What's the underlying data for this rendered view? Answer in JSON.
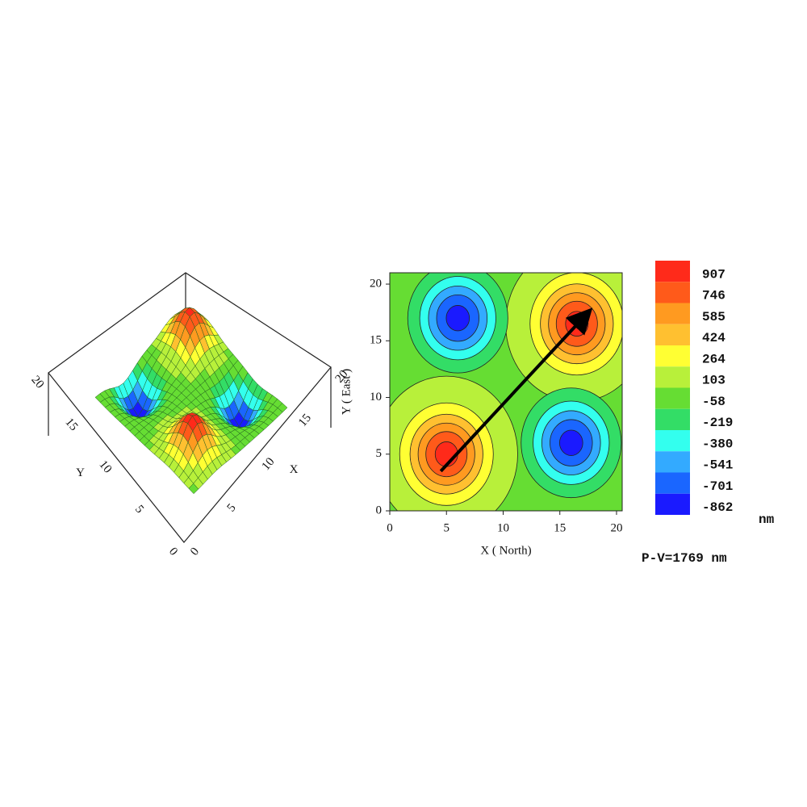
{
  "chart_data": [
    {
      "type": "surface",
      "xlabel": "X",
      "ylabel": "Y",
      "xlim": [
        0,
        20
      ],
      "ylim": [
        0,
        20
      ],
      "xticks": [
        0,
        5,
        10,
        15,
        20
      ],
      "yticks": [
        0,
        5,
        10,
        15,
        20
      ],
      "extrema": {
        "x": [
          5,
          16.5,
          6,
          16
        ],
        "y": [
          5,
          16.5,
          17,
          6
        ],
        "values": [
          907,
          907,
          -862,
          -862
        ]
      }
    },
    {
      "type": "contour",
      "xlabel": "X ( North)",
      "ylabel": "Y ( East )",
      "xlim": [
        0,
        20.5
      ],
      "ylim": [
        0,
        21
      ],
      "xticks": [
        0,
        5,
        10,
        15,
        20
      ],
      "yticks": [
        0,
        5,
        10,
        15,
        20
      ],
      "extrema": {
        "x": [
          5,
          16.5,
          6,
          16
        ],
        "y": [
          5,
          16.5,
          17,
          6
        ],
        "values": [
          907,
          907,
          -862,
          -862
        ]
      },
      "levels": [
        907,
        746,
        585,
        424,
        264,
        103,
        -58,
        -219,
        -380,
        -541,
        -701,
        -862
      ],
      "colors": [
        "#ff2a1a",
        "#ff5a1a",
        "#ff9a20",
        "#ffc030",
        "#ffff33",
        "#b8f03a",
        "#66dd33",
        "#33dd66",
        "#33ffee",
        "#33aaff",
        "#1a66ff",
        "#1a1aff"
      ],
      "unit": "nm",
      "annotation": "P-V=1769 nm",
      "arrow": {
        "x": [
          4.5,
          17.5
        ],
        "y": [
          3.5,
          17.5
        ]
      }
    }
  ]
}
